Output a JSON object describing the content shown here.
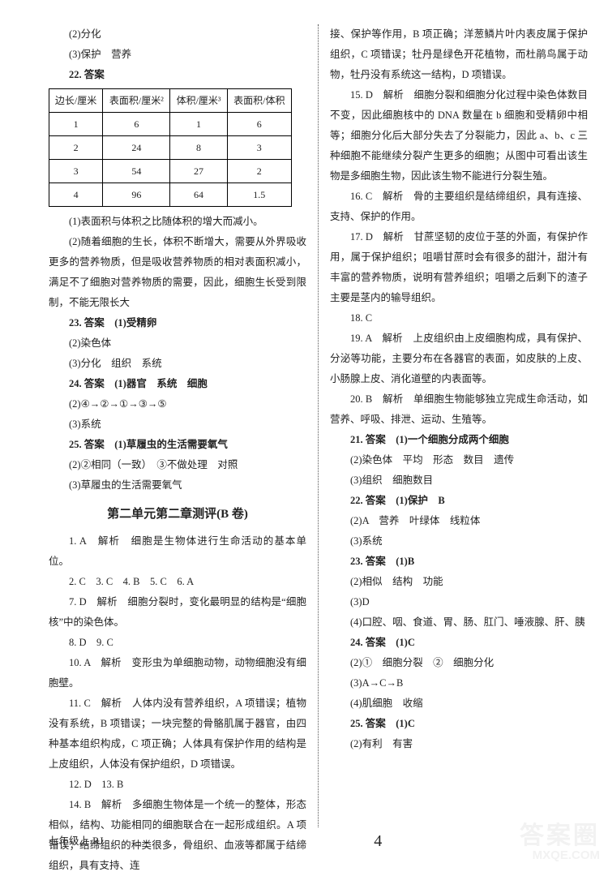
{
  "left": {
    "l1": "(2)分化",
    "l2": "(3)保护　营养",
    "l3": "22. 答案",
    "table": {
      "headers": [
        "边长/厘米",
        "表面积/厘米²",
        "体积/厘米³",
        "表面积/体积"
      ],
      "rows": [
        [
          "1",
          "6",
          "1",
          "6"
        ],
        [
          "2",
          "24",
          "8",
          "3"
        ],
        [
          "3",
          "54",
          "27",
          "2"
        ],
        [
          "4",
          "96",
          "64",
          "1.5"
        ]
      ]
    },
    "l4": "(1)表面积与体积之比随体积的增大而减小。",
    "l5": "(2)随着细胞的生长，体积不断增大，需要从外界吸收更多的营养物质，但是吸收营养物质的相对表面积减小，满足不了细胞对营养物质的需要，因此，细胞生长受到限制，不能无限长大",
    "l6": "23. 答案　(1)受精卵",
    "l7": "(2)染色体",
    "l8": "(3)分化　组织　系统",
    "l9": "24. 答案　(1)器官　系统　细胞",
    "l10": "(2)④→②→①→③→⑤",
    "l11": "(3)系统",
    "l12": "25. 答案　(1)草履虫的生活需要氧气",
    "l13": "(2)②相同（一致）　③不做处理　对照",
    "l14": "(3)草履虫的生活需要氧气",
    "sec": "第二单元第二章测评(B 卷)",
    "b1": "1. A　解析　细胞是生物体进行生命活动的基本单位。",
    "b2": "2. C　3. C　4. B　5. C　6. A",
    "b3": "7. D　解析　细胞分裂时，变化最明显的结构是“细胞核”中的染色体。",
    "b4": "8. D　9. C",
    "b5": "10. A　解析　变形虫为单细胞动物，动物细胞没有细胞壁。",
    "b6": "11. C　解析　人体内没有营养组织，A 项错误；植物没有系统，B 项错误；一块完整的骨骼肌属于器官，由四种基本组织构成，C 项正确；人体具有保护作用的结构是上皮组织，人体没有保护组织，D 项错误。",
    "b7": "12. D　13. B",
    "b8": "14. B　解析　多细胞生物体是一个统一的整体，形态相似，结构、功能相同的细胞联合在一起形成组织。A 项错误；结缔组织的种类很多，骨组织、血液等都属于结缔组织，具有支持、连"
  },
  "right": {
    "r1": "接、保护等作用，B 项正确；洋葱鳞片叶内表皮属于保护组织，C 项错误；牡丹是绿色开花植物，而杜鹃鸟属于动物，牡丹没有系统这一结构，D 项错误。",
    "r2": "15. D　解析　细胞分裂和细胞分化过程中染色体数目不变，因此细胞核中的 DNA 数量在 b 细胞和受精卵中相等；细胞分化后大部分失去了分裂能力，因此 a、b、c 三种细胞不能继续分裂产生更多的细胞；从图中可看出该生物是多细胞生物，因此该生物不能进行分裂生殖。",
    "r3": "16. C　解析　骨的主要组织是结缔组织，具有连接、支持、保护的作用。",
    "r4": "17. D　解析　甘蔗坚韧的皮位于茎的外面，有保护作用，属于保护组织；咀嚼甘蔗时会有很多的甜汁，甜汁有丰富的营养物质，说明有营养组织；咀嚼之后剩下的渣子主要是茎内的输导组织。",
    "r5": "18. C",
    "r6": "19. A　解析　上皮组织由上皮细胞构成，具有保护、分泌等功能，主要分布在各器官的表面，如皮肤的上皮、小肠腺上皮、消化道壁的内表面等。",
    "r7": "20. B　解析　单细胞生物能够独立完成生命活动，如营养、呼吸、排泄、运动、生殖等。",
    "r8": "21. 答案　(1)一个细胞分成两个细胞",
    "r9": "(2)染色体　平均　形态　数目　遗传",
    "r10": "(3)组织　细胞数目",
    "r11": "22. 答案　(1)保护　B",
    "r12": "(2)A　营养　叶绿体　线粒体",
    "r13": "(3)系统",
    "r14": "23. 答案　(1)B",
    "r15": "(2)相似　结构　功能",
    "r16": "(3)D",
    "r17": "(4)口腔、咽、食道、胃、肠、肛门、唾液腺、肝、胰",
    "r18": "24. 答案　(1)C",
    "r19": "(2)①　细胞分裂　②　细胞分化",
    "r20": "(3)A→C→B",
    "r21": "(4)肌细胞　收缩",
    "r22": "25. 答案　(1)C",
    "r23": "(2)有利　有害"
  },
  "footer": {
    "left": "七年级上·RJ",
    "num": "4"
  },
  "watermark": {
    "a": "答案圈",
    "b": "MXQE.COM"
  }
}
